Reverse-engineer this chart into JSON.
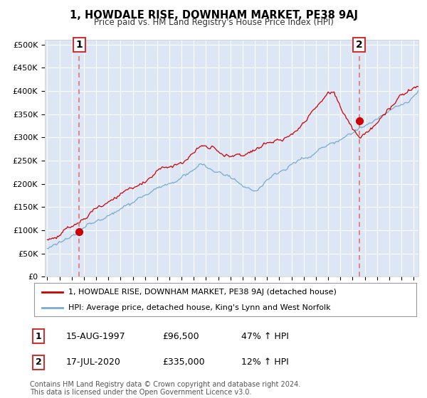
{
  "title": "1, HOWDALE RISE, DOWNHAM MARKET, PE38 9AJ",
  "subtitle": "Price paid vs. HM Land Registry's House Price Index (HPI)",
  "ylabel_ticks": [
    "£0",
    "£50K",
    "£100K",
    "£150K",
    "£200K",
    "£250K",
    "£300K",
    "£350K",
    "£400K",
    "£450K",
    "£500K"
  ],
  "ytick_vals": [
    0,
    50000,
    100000,
    150000,
    200000,
    250000,
    300000,
    350000,
    400000,
    450000,
    500000
  ],
  "ylim": [
    0,
    510000
  ],
  "xlim_start": 1994.8,
  "xlim_end": 2025.4,
  "sale1_x": 1997.62,
  "sale1_y": 96500,
  "sale2_x": 2020.54,
  "sale2_y": 335000,
  "bg_color": "#dce6f5",
  "plot_bg": "#dce6f5",
  "red_line_color": "#cc0000",
  "blue_line_color": "#7aaad0",
  "marker_color": "#cc0000",
  "vline_color": "#e87070",
  "legend_label1": "1, HOWDALE RISE, DOWNHAM MARKET, PE38 9AJ (detached house)",
  "legend_label2": "HPI: Average price, detached house, King's Lynn and West Norfolk",
  "footer_text": "Contains HM Land Registry data © Crown copyright and database right 2024.\nThis data is licensed under the Open Government Licence v3.0.",
  "table_row1": [
    "1",
    "15-AUG-1997",
    "£96,500",
    "47% ↑ HPI"
  ],
  "table_row2": [
    "2",
    "17-JUL-2020",
    "£335,000",
    "12% ↑ HPI"
  ]
}
